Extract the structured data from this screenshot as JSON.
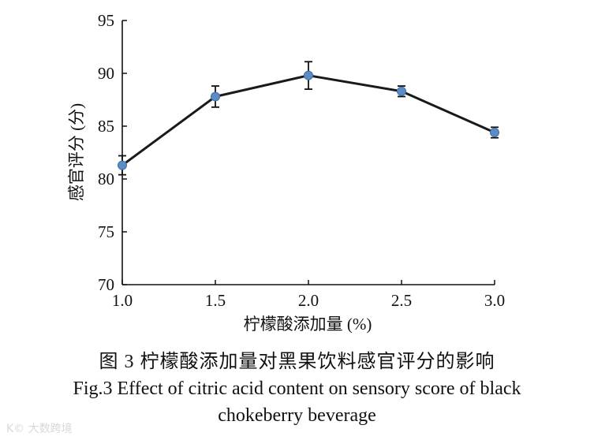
{
  "chart_data": {
    "type": "line",
    "title": "",
    "xlabel": "柠檬酸添加量 (%)",
    "ylabel": "感官评分 (分)",
    "x": [
      1.0,
      1.5,
      2.0,
      2.5,
      3.0
    ],
    "x_tick_labels": [
      "1.0",
      "1.5",
      "2.0",
      "2.5",
      "3.0"
    ],
    "y_ticks": [
      70,
      75,
      80,
      85,
      90,
      95
    ],
    "y_tick_labels": [
      "70",
      "75",
      "80",
      "85",
      "90",
      "95"
    ],
    "xlim": [
      1.0,
      3.0
    ],
    "ylim": [
      70,
      95
    ],
    "grid": false,
    "series": [
      {
        "name": "感官评分",
        "values": [
          81.3,
          87.8,
          89.8,
          88.3,
          84.4
        ],
        "errors": [
          0.9,
          1.0,
          1.3,
          0.5,
          0.5
        ],
        "line_color": "#1a1a1a",
        "marker_color": "#5b8cc4"
      }
    ]
  },
  "caption": {
    "cn": "图 3    柠檬酸添加量对黑果饮料感官评分的影响",
    "en_line1": "Fig.3    Effect of citric acid content on sensory score of black",
    "en_line2": "chokeberry beverage"
  },
  "watermark": "K© 大数跨境"
}
